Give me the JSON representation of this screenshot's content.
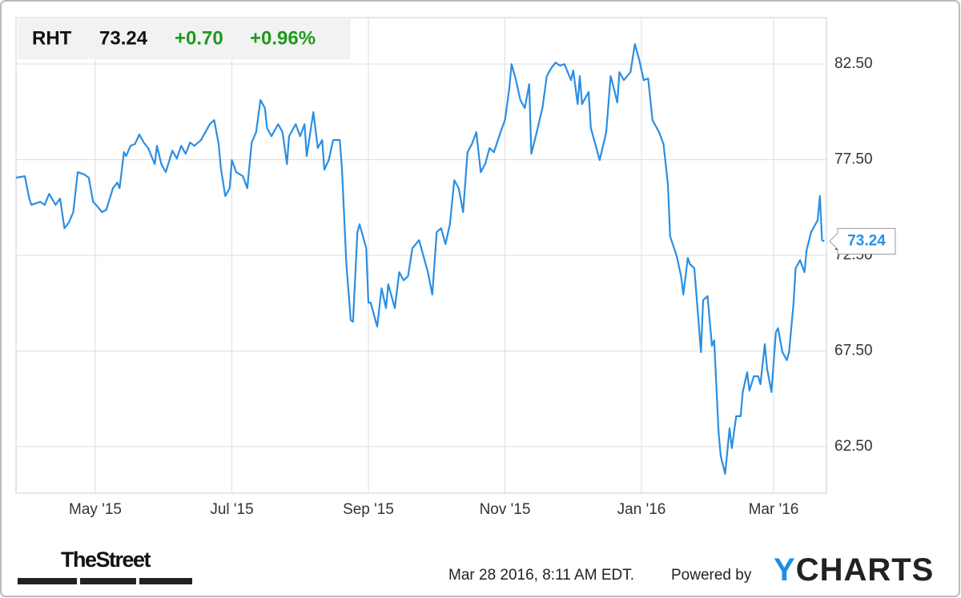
{
  "header": {
    "ticker": "RHT",
    "price": "73.24",
    "change": "+0.70",
    "change_pct": "+0.96%"
  },
  "footer": {
    "source": "TheStreet",
    "timestamp": "Mar 28 2016, 8:11 AM EDT.",
    "powered": "Powered by",
    "brand": "YCHARTS"
  },
  "chart_data": {
    "type": "line",
    "x": [
      0,
      4,
      6,
      7,
      11,
      13,
      15,
      18,
      20,
      22,
      24,
      26,
      28,
      31,
      33,
      35,
      37,
      39,
      41,
      44,
      46,
      47,
      49,
      50,
      52,
      54,
      56,
      58,
      60,
      63,
      64,
      66,
      68,
      71,
      73,
      75,
      77,
      79,
      81,
      84,
      86,
      88,
      90,
      92,
      93,
      95,
      97,
      98,
      100,
      103,
      105,
      107,
      109,
      111,
      113,
      114,
      116,
      119,
      121,
      123,
      124,
      127,
      129,
      131,
      132,
      135,
      137,
      139,
      140,
      142,
      144,
      147,
      148,
      150,
      152,
      153,
      155,
      156,
      159,
      160,
      161,
      164,
      166,
      168,
      169,
      172,
      174,
      176,
      178,
      180,
      183,
      185,
      187,
      189,
      191,
      193,
      195,
      197,
      199,
      201,
      203,
      205,
      207,
      209,
      211,
      213,
      215,
      217,
      220,
      222,
      224,
      225,
      227,
      229,
      231,
      233,
      234,
      236,
      239,
      241,
      243,
      245,
      247,
      249,
      252,
      253,
      255,
      256,
      257,
      260,
      261,
      263,
      265,
      268,
      270,
      271,
      273,
      274,
      276,
      279,
      281,
      283,
      285,
      287,
      289,
      292,
      294,
      296,
      297,
      300,
      302,
      303,
      305,
      306,
      308,
      311,
      312,
      314,
      316,
      317,
      319,
      320,
      322,
      324,
      325,
      327,
      329,
      330,
      332,
      333,
      335,
      337,
      338,
      340,
      341,
      343,
      345,
      346,
      348,
      350,
      351,
      353,
      354,
      356,
      358,
      359,
      361,
      364,
      365,
      366,
      367
    ],
    "series": [
      {
        "name": "RHT",
        "color": "#2b8ee3",
        "values": [
          76.56,
          76.64,
          75.47,
          75.14,
          75.3,
          75.14,
          75.72,
          75.14,
          75.47,
          73.92,
          74.22,
          74.76,
          76.85,
          76.73,
          76.56,
          75.3,
          75.05,
          74.76,
          74.88,
          76.01,
          76.31,
          76.01,
          77.9,
          77.69,
          78.23,
          78.32,
          78.82,
          78.4,
          78.11,
          77.27,
          78.23,
          77.27,
          76.85,
          77.98,
          77.56,
          78.23,
          77.81,
          78.4,
          78.23,
          78.53,
          78.94,
          79.36,
          79.57,
          78.32,
          77.06,
          75.6,
          76.01,
          77.48,
          76.85,
          76.64,
          76.01,
          78.4,
          78.94,
          80.62,
          80.2,
          79.15,
          78.73,
          79.36,
          78.94,
          77.27,
          78.73,
          79.36,
          78.73,
          79.36,
          77.69,
          79.99,
          78.11,
          78.53,
          76.98,
          77.48,
          78.53,
          78.53,
          77.06,
          72.04,
          69.11,
          69.03,
          73.71,
          74.13,
          72.88,
          70.03,
          70.03,
          68.78,
          70.78,
          69.74,
          70.99,
          69.74,
          71.62,
          71.2,
          71.41,
          72.88,
          73.29,
          72.46,
          71.62,
          70.45,
          73.71,
          73.92,
          73.09,
          74.13,
          76.43,
          76.01,
          74.76,
          77.9,
          78.32,
          78.94,
          76.85,
          77.27,
          78.11,
          77.9,
          78.94,
          79.57,
          81.24,
          82.5,
          81.66,
          80.62,
          80.2,
          81.45,
          77.81,
          78.73,
          80.2,
          81.87,
          82.29,
          82.58,
          82.42,
          82.5,
          81.66,
          82.17,
          80.41,
          81.87,
          80.41,
          81.04,
          79.15,
          78.32,
          77.48,
          78.94,
          81.87,
          81.45,
          80.49,
          82.08,
          81.66,
          82.08,
          83.55,
          82.71,
          81.66,
          81.75,
          79.57,
          78.94,
          78.32,
          76.22,
          73.5,
          72.46,
          71.41,
          70.45,
          72.37,
          72.04,
          71.83,
          67.44,
          70.16,
          70.37,
          67.77,
          68.06,
          63.25,
          62.0,
          61.08,
          63.46,
          62.42,
          64.09,
          64.09,
          65.35,
          66.39,
          65.43,
          66.18,
          66.18,
          65.76,
          67.86,
          66.6,
          65.35,
          68.48,
          68.69,
          67.44,
          67.02,
          67.44,
          69.95,
          71.83,
          72.25,
          71.62,
          72.79,
          73.71,
          74.34,
          75.6,
          73.29,
          73.24
        ]
      }
    ],
    "xlim": [
      0,
      368
    ],
    "xticks": [
      {
        "value": 36,
        "label": "May '15"
      },
      {
        "value": 98,
        "label": "Jul '15"
      },
      {
        "value": 160,
        "label": "Sep '15"
      },
      {
        "value": 222,
        "label": "Nov '15"
      },
      {
        "value": 284,
        "label": "Jan '16"
      },
      {
        "value": 344,
        "label": "Mar '16"
      }
    ],
    "ylim": [
      60.07,
      84.93
    ],
    "yticks": [
      {
        "value": 62.5,
        "label": "62.50"
      },
      {
        "value": 67.5,
        "label": "67.50"
      },
      {
        "value": 72.5,
        "label": "72.50"
      },
      {
        "value": 77.5,
        "label": "77.50"
      },
      {
        "value": 82.5,
        "label": "82.50"
      }
    ],
    "grid": true
  }
}
